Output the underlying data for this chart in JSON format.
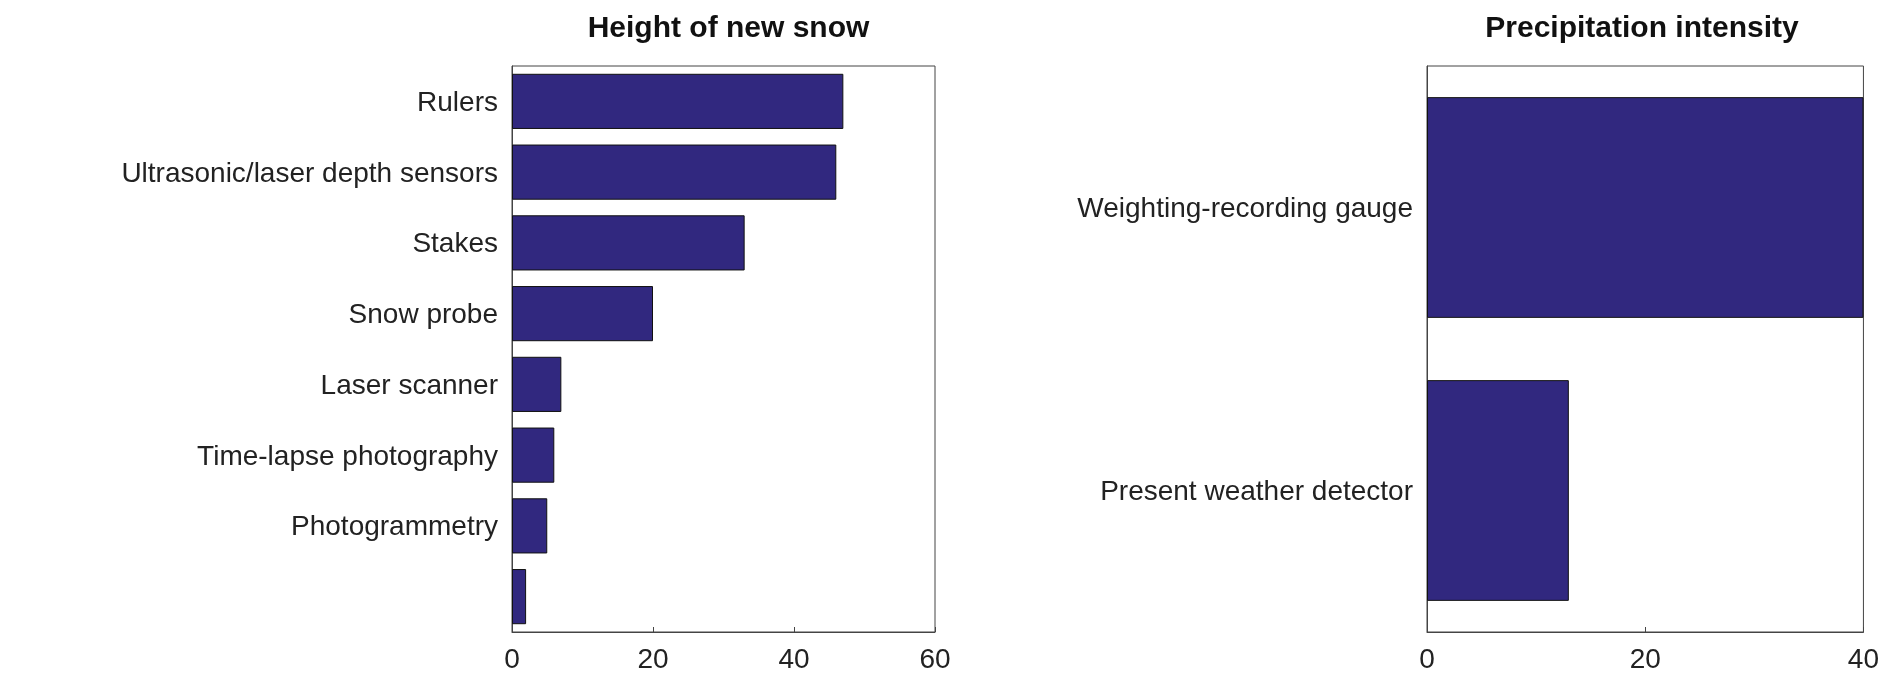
{
  "chart_data": [
    {
      "type": "bar",
      "orientation": "horizontal",
      "title": "Height of new snow",
      "categories": [
        "Rulers",
        "Ultrasonic/laser depth sensors",
        "Stakes",
        "Snow probe",
        "Laser scanner",
        "Time-lapse photography",
        "Photogrammetry",
        null
      ],
      "values": [
        47,
        46,
        33,
        20,
        7,
        6,
        5,
        2
      ],
      "color": "#31287f",
      "xlim": [
        0,
        60
      ],
      "xticks": [
        0,
        20,
        40,
        60
      ],
      "grid": false
    },
    {
      "type": "bar",
      "orientation": "horizontal",
      "title": "Precipitation intensity",
      "categories": [
        "Weighting-recording gauge",
        "Present weather detector"
      ],
      "values": [
        40,
        13
      ],
      "color": "#31287f",
      "xlim": [
        0,
        40
      ],
      "xticks": [
        0,
        20,
        40
      ],
      "grid": false
    }
  ]
}
